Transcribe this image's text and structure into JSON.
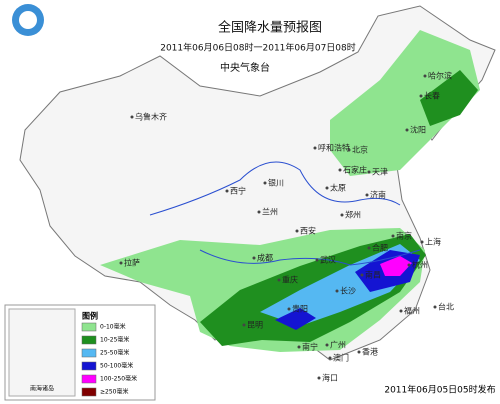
{
  "header": {
    "title": "全国降水量预报图",
    "subtitle": "2011年06月06日08时一2011年06月07日08时",
    "issuer": "中央气象台"
  },
  "cities": [
    "哈尔滨",
    "长春",
    "沈阳",
    "乌鲁木齐",
    "呼和浩特",
    "北京",
    "天津",
    "石家庄",
    "太原",
    "济南",
    "银川",
    "西宁",
    "兰州",
    "郑州",
    "西安",
    "南京",
    "合肥",
    "上海",
    "武汉",
    "杭州",
    "拉萨",
    "成都",
    "重庆",
    "长沙",
    "南昌",
    "贵阳",
    "福州",
    "昆明",
    "台北",
    "南宁",
    "广州",
    "香港",
    "澳门",
    "海口"
  ],
  "legend": {
    "title": "图例",
    "items": [
      {
        "label": "0-10毫米",
        "color": "#8fe48f"
      },
      {
        "label": "10-25毫米",
        "color": "#1f8f1f"
      },
      {
        "label": "25-50毫米",
        "color": "#55b8f2"
      },
      {
        "label": "50-100毫米",
        "color": "#1414d2"
      },
      {
        "label": "100-250毫米",
        "color": "#ff00ff"
      },
      {
        "label": "≥250毫米",
        "color": "#800000"
      }
    ]
  },
  "inset": "南海诸岛",
  "footer": "2011年06月05日05时发布"
}
